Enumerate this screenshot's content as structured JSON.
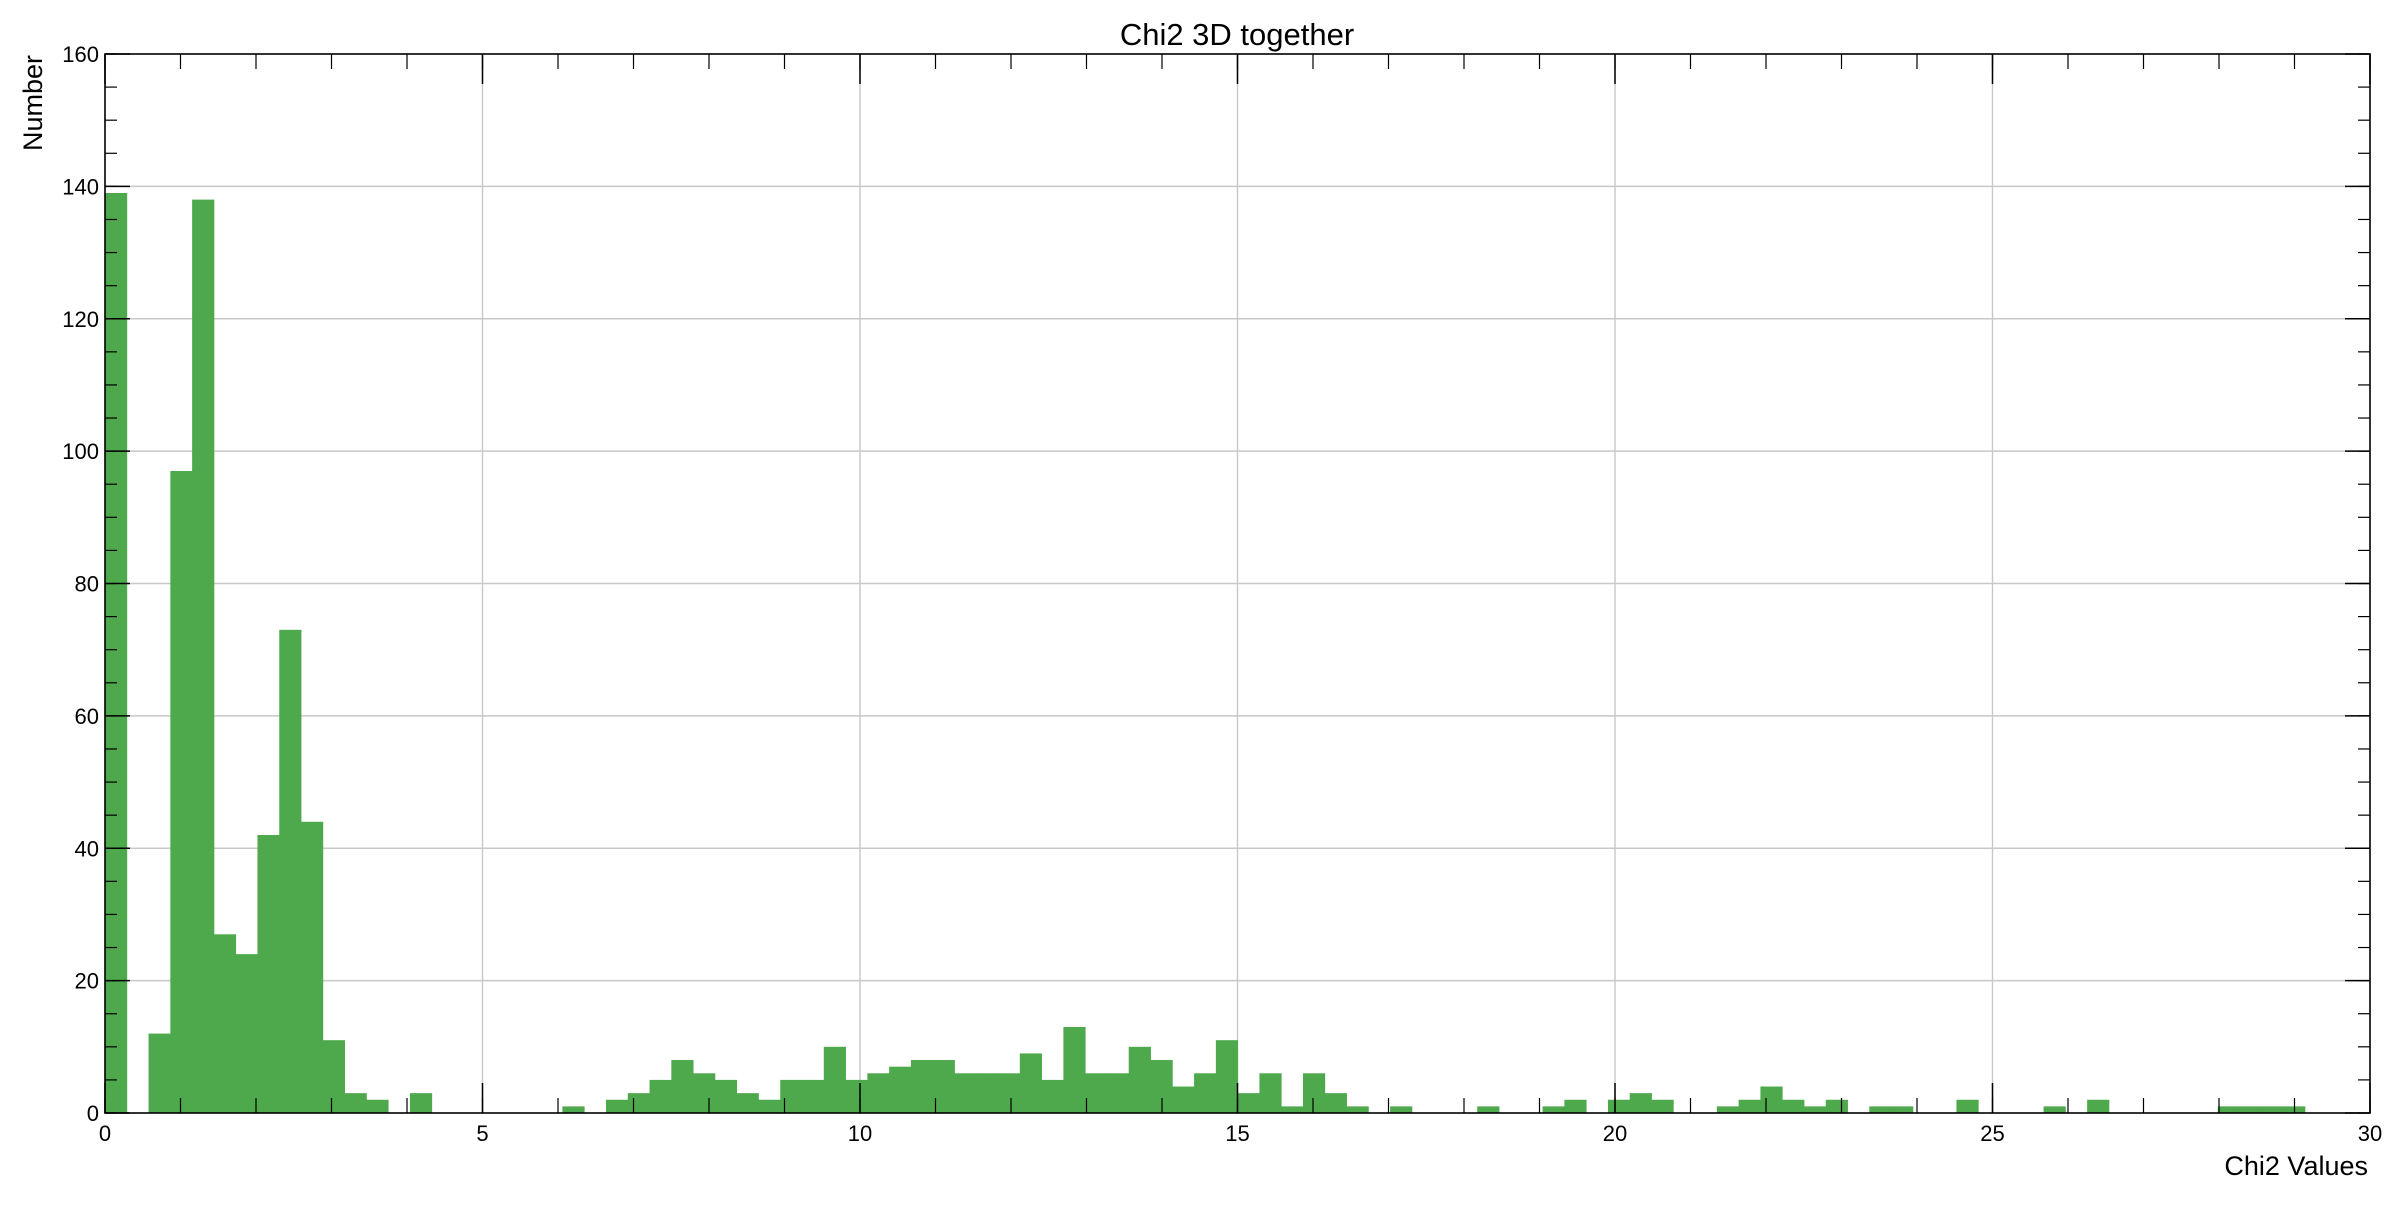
{
  "chart_data": {
    "type": "bar",
    "title": "Chi2 3D together",
    "xlabel": "Chi2 Values",
    "ylabel": "Number",
    "xlim": [
      0,
      30
    ],
    "ylim": [
      0,
      160
    ],
    "x_ticks": [
      0,
      5,
      10,
      15,
      20,
      25,
      30
    ],
    "y_ticks": [
      0,
      20,
      40,
      60,
      80,
      100,
      120,
      140,
      160
    ],
    "grid": true,
    "legend": "none",
    "bin_width": 0.2885,
    "bar_color": "#4ea84c",
    "values": [
      139,
      0,
      12,
      97,
      138,
      27,
      24,
      42,
      73,
      44,
      11,
      3,
      2,
      0,
      3,
      0,
      0,
      0,
      0,
      0,
      0,
      1,
      0,
      2,
      3,
      5,
      8,
      6,
      5,
      3,
      2,
      5,
      5,
      10,
      5,
      6,
      7,
      8,
      8,
      6,
      6,
      6,
      9,
      5,
      13,
      6,
      6,
      10,
      8,
      4,
      6,
      11,
      3,
      6,
      1,
      6,
      3,
      1,
      0,
      1,
      0,
      0,
      0,
      1,
      0,
      0,
      1,
      2,
      0,
      2,
      3,
      2,
      0,
      0,
      1,
      2,
      4,
      2,
      1,
      2,
      0,
      1,
      1,
      0,
      0,
      2,
      0,
      0,
      0,
      1,
      0,
      2,
      0,
      0,
      0,
      0,
      0,
      1,
      1,
      1,
      1
    ]
  }
}
